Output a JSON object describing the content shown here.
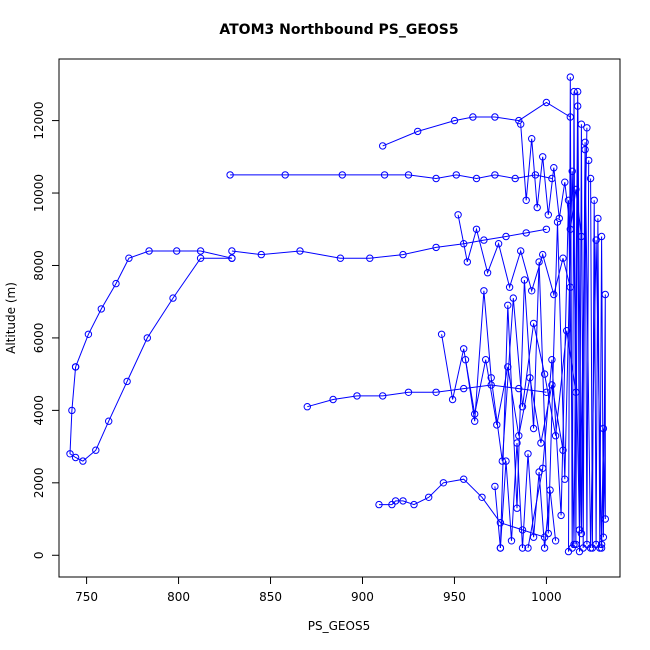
{
  "chart_data": {
    "type": "line",
    "title": "ATOM3 Northbound PS_GEOS5",
    "xlabel": "PS_GEOS5",
    "ylabel": "Altitude (m)",
    "xlim": [
      735,
      1040
    ],
    "ylim": [
      -600,
      13700
    ],
    "xticks": [
      750,
      800,
      850,
      900,
      950,
      1000
    ],
    "yticks": [
      0,
      2000,
      4000,
      6000,
      8000,
      10000,
      12000
    ],
    "xtick_labels": [
      "750",
      "800",
      "850",
      "900",
      "950",
      "1000"
    ],
    "ytick_labels": [
      "0",
      "2000",
      "4000",
      "6000",
      "8000",
      "10000",
      "12000"
    ],
    "marker": "open-circle",
    "grid": false,
    "legend": "none",
    "colors": {
      "series": "#0000ff",
      "axes": "#000000",
      "background": "#ffffff"
    },
    "series": [
      {
        "label": "profile-curve",
        "x": [
          744,
          742,
          741,
          744,
          748,
          755,
          762,
          772,
          783,
          797,
          812,
          829
        ],
        "y": [
          5200,
          4000,
          2800,
          2700,
          2600,
          2900,
          3700,
          4800,
          6000,
          7100,
          8200,
          8200
        ]
      },
      {
        "label": "profile-upper",
        "x": [
          829,
          812,
          799,
          784,
          773,
          766,
          758,
          751,
          744
        ],
        "y": [
          8200,
          8400,
          8400,
          8400,
          8200,
          7500,
          6800,
          6100,
          5200
        ]
      },
      {
        "label": "level-8400",
        "x": [
          829,
          845,
          866,
          888,
          904,
          922,
          940,
          955,
          966,
          978,
          989,
          1000
        ],
        "y": [
          8400,
          8300,
          8400,
          8200,
          8200,
          8300,
          8500,
          8600,
          8700,
          8800,
          8900,
          9000
        ]
      },
      {
        "label": "level-10500",
        "x": [
          828,
          858,
          889,
          912,
          925,
          940,
          951,
          962,
          972,
          983,
          994,
          1003
        ],
        "y": [
          10500,
          10500,
          10500,
          10500,
          10500,
          10400,
          10500,
          10400,
          10500,
          10400,
          10500,
          10400
        ]
      },
      {
        "label": "level-12000",
        "x": [
          911,
          930,
          950,
          960,
          972,
          985,
          1000,
          1013
        ],
        "y": [
          11300,
          11700,
          12000,
          12100,
          12100,
          12000,
          12500,
          12100
        ]
      },
      {
        "label": "level-4100",
        "x": [
          870,
          884,
          897,
          911,
          925,
          940,
          955,
          970,
          985,
          1000
        ],
        "y": [
          4100,
          4300,
          4400,
          4400,
          4500,
          4500,
          4600,
          4700,
          4600,
          4500
        ]
      },
      {
        "label": "level-1500",
        "x": [
          909,
          916,
          918,
          922,
          928,
          936,
          944,
          955,
          965,
          975,
          987,
          999
        ],
        "y": [
          1400,
          1400,
          1500,
          1500,
          1400,
          1600,
          2000,
          2100,
          1600,
          900,
          700,
          500
        ]
      },
      {
        "label": "cluster-a",
        "x": [
          990,
          998,
          1003,
          1008,
          1012,
          1015,
          1017,
          1019,
          1021,
          1024,
          1027,
          1030
        ],
        "y": [
          200,
          2400,
          5400,
          1100,
          9800,
          300,
          12800,
          600,
          11200,
          200,
          8700,
          300
        ]
      },
      {
        "label": "cluster-b",
        "x": [
          975,
          979,
          984,
          988,
          993,
          996,
          1001,
          1006,
          1010,
          1014,
          1018,
          1022
        ],
        "y": [
          200,
          6900,
          1300,
          7600,
          3500,
          8100,
          600,
          9200,
          2100,
          10600,
          700,
          11800
        ]
      },
      {
        "label": "cluster-c",
        "x": [
          956,
          961,
          966,
          970,
          976,
          982,
          987,
          993,
          999,
          1005,
          1011,
          1016
        ],
        "y": [
          5400,
          3700,
          7300,
          4900,
          2600,
          7100,
          4100,
          6400,
          5000,
          3300,
          6200,
          4500
        ]
      },
      {
        "label": "cluster-d",
        "x": [
          1012,
          1013,
          1014,
          1015,
          1016,
          1017,
          1018,
          1019,
          1020,
          1021,
          1022,
          1023
        ],
        "y": [
          100,
          13200,
          200,
          12800,
          300,
          12400,
          100,
          11900,
          200,
          11400,
          300,
          10900
        ]
      },
      {
        "label": "cluster-e",
        "x": [
          1024,
          1025,
          1026,
          1027,
          1028,
          1029,
          1030,
          1031,
          1032,
          1032,
          1031,
          1030
        ],
        "y": [
          10400,
          200,
          9800,
          300,
          9300,
          200,
          8800,
          500,
          7200,
          1000,
          3500,
          200
        ]
      },
      {
        "label": "cluster-f",
        "x": [
          952,
          957,
          962,
          968,
          974,
          980,
          986,
          992,
          998,
          1004,
          1009,
          1013
        ],
        "y": [
          9400,
          8100,
          9000,
          7800,
          8600,
          7400,
          8400,
          7300,
          8300,
          7200,
          8200,
          7400
        ]
      },
      {
        "label": "cluster-g",
        "x": [
          943,
          949,
          955,
          961,
          967,
          973,
          979,
          985,
          991,
          997,
          1003,
          1009
        ],
        "y": [
          6100,
          4300,
          5700,
          3900,
          5400,
          3600,
          5200,
          3300,
          4900,
          3100,
          4700,
          2900
        ]
      },
      {
        "label": "cluster-h",
        "x": [
          972,
          975,
          978,
          981,
          984,
          987,
          990,
          993,
          996,
          999,
          1002,
          1005
        ],
        "y": [
          1900,
          200,
          2600,
          400,
          3100,
          200,
          2800,
          500,
          2300,
          200,
          1800,
          400
        ]
      },
      {
        "label": "cluster-i",
        "x": [
          986,
          989,
          992,
          995,
          998,
          1001,
          1004,
          1007,
          1010,
          1013,
          1016,
          1019
        ],
        "y": [
          11900,
          9800,
          11500,
          9600,
          11000,
          9400,
          10700,
          9300,
          10300,
          9000,
          10100,
          8800
        ]
      }
    ]
  }
}
